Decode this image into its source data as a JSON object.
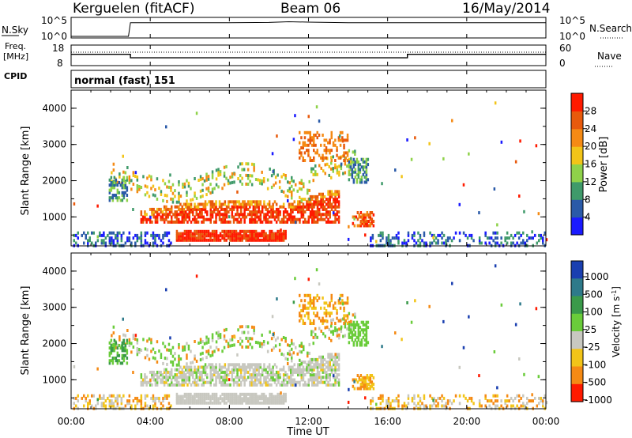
{
  "header": {
    "station": "Kerguelen (fitACF)",
    "beam": "Beam 06",
    "date": "16/May/2014"
  },
  "sky_panel": {
    "left_label": "N.Sky",
    "left_ticks": [
      "10^5",
      "10^0"
    ],
    "right_label": "N.Search",
    "right_ticks": [
      "10^5",
      "10^0"
    ]
  },
  "freq_panel": {
    "left_label_1": "Freq.",
    "left_label_2": "[MHz]",
    "left_ticks": [
      "18",
      "8"
    ],
    "right_label": "Nave",
    "right_ticks": [
      "60",
      "0"
    ],
    "cpid_label": "CPID"
  },
  "cpid": {
    "text": "normal (fast) 151"
  },
  "x_axis": {
    "ticks": [
      "00:00",
      "04:00",
      "08:00",
      "12:00",
      "16:00",
      "20:00",
      "00:00"
    ],
    "label": "Time UT"
  },
  "y_axis": {
    "label": "Slant Range [km]",
    "ticks": [
      "1000",
      "2000",
      "3000",
      "4000"
    ]
  },
  "power_colorbar": {
    "label": "Power [dB]",
    "ticks": [
      "4",
      "8",
      "12",
      "16",
      "20",
      "24",
      "28"
    ],
    "colors": [
      "#1a1aff",
      "#2a5aa8",
      "#3f9a6a",
      "#8fd24a",
      "#f2c418",
      "#f58a14",
      "#e85a0c",
      "#ff1a00"
    ]
  },
  "velocity_colorbar": {
    "label": "Velocity [m s",
    "label_sup": "-1",
    "label_close": "]",
    "ticks": [
      "1000",
      "500",
      "100",
      "25",
      "-25",
      "-100",
      "-500",
      "-1000"
    ],
    "colors": [
      "#1a3fb0",
      "#2e7a8a",
      "#3a9a4a",
      "#6acc3a",
      "#c8c8c0",
      "#f2c418",
      "#f58a14",
      "#ff1a00"
    ]
  },
  "chart_data": [
    {
      "type": "line",
      "title": "N.Sky / N.Search",
      "xlim": [
        0,
        24
      ],
      "ylim_log": [
        0,
        5
      ],
      "series": [
        {
          "name": "N.Sky",
          "x": [
            0,
            2.9,
            3.0,
            4,
            6,
            8,
            10,
            11,
            12,
            13,
            14,
            16,
            18,
            20,
            22,
            24
          ],
          "y": [
            0,
            0,
            3.9,
            3.9,
            3.9,
            3.9,
            4.0,
            4.2,
            4.1,
            4.0,
            3.9,
            3.9,
            3.9,
            3.9,
            3.9,
            3.9
          ]
        }
      ]
    },
    {
      "type": "line",
      "title": "Frequency",
      "xlim": [
        0,
        24
      ],
      "ylim": [
        8,
        18
      ],
      "series": [
        {
          "name": "Freq.",
          "x": [
            0,
            3.0,
            3.0,
            17.0,
            17.0,
            24
          ],
          "y": [
            13.5,
            13.5,
            11.8,
            11.8,
            13.5,
            13.5
          ]
        }
      ]
    },
    {
      "type": "heatmap",
      "title": "Power",
      "xlim": [
        0,
        24
      ],
      "ylim": [
        200,
        4500
      ],
      "xlabel": "Time UT",
      "ylabel": "Slant Range [km]",
      "units": "dB",
      "range": [
        0,
        30
      ]
    },
    {
      "type": "heatmap",
      "title": "Velocity",
      "xlim": [
        0,
        24
      ],
      "ylim": [
        200,
        4500
      ],
      "xlabel": "Time UT",
      "ylabel": "Slant Range [km]",
      "units": "m s-1",
      "range": [
        -1000,
        1000
      ]
    }
  ]
}
